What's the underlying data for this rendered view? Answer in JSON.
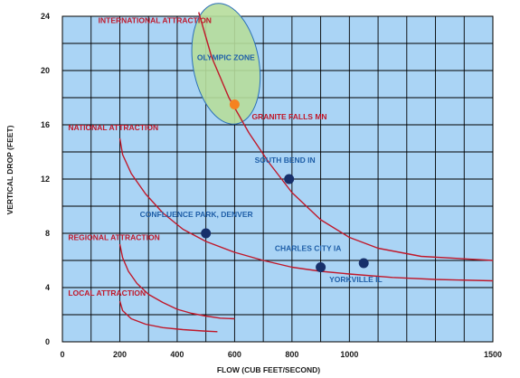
{
  "chart_data": {
    "type": "scatter",
    "title": "",
    "xlabel": "FLOW (CUB FEET/SECOND)",
    "ylabel": "VERTICAL DROP (FEET)",
    "xlim": [
      0,
      1500
    ],
    "ylim": [
      0,
      24
    ],
    "x_ticks": [
      0,
      200,
      400,
      600,
      800,
      1000,
      1500
    ],
    "y_ticks": [
      0,
      4,
      8,
      12,
      16,
      20,
      24
    ],
    "grid": true,
    "colors": {
      "plot_background": "#aad4f5",
      "grid": "#000000",
      "curves": "#c0182a",
      "points": "#17306b",
      "highlight_point": "#f58220",
      "zone_fill": "#b6dd9b",
      "zone_edge": "#2a6fb8",
      "region_labels": "#c0182a",
      "point_labels": "#1f5fa8"
    },
    "regions": [
      {
        "label": "INTERNATIONAL ATTRACTION",
        "x": 125,
        "y": 23.5
      },
      {
        "label": "NATIONAL ATTRACTION",
        "x": 20,
        "y": 15.6
      },
      {
        "label": "REGIONAL ATTRACTION",
        "x": 20,
        "y": 7.5
      },
      {
        "label": "LOCAL ATTRACTION",
        "x": 20,
        "y": 3.4
      }
    ],
    "zone": {
      "label": "OLYMPIC ZONE",
      "cx": 570,
      "cy": 20.5,
      "rx": 115,
      "ry": 4.5
    },
    "curves": [
      {
        "points": [
          [
            475,
            24.3
          ],
          [
            520,
            21
          ],
          [
            580,
            18
          ],
          [
            650,
            15.4
          ],
          [
            720,
            13.2
          ],
          [
            800,
            11
          ],
          [
            900,
            9
          ],
          [
            1000,
            7.7
          ],
          [
            1100,
            6.9
          ],
          [
            1250,
            6.3
          ],
          [
            1500,
            6
          ]
        ]
      },
      {
        "points": [
          [
            200,
            15
          ],
          [
            210,
            13.8
          ],
          [
            240,
            12.4
          ],
          [
            290,
            10.9
          ],
          [
            350,
            9.5
          ],
          [
            420,
            8.3
          ],
          [
            500,
            7.4
          ],
          [
            600,
            6.6
          ],
          [
            700,
            6
          ],
          [
            800,
            5.5
          ],
          [
            900,
            5.2
          ],
          [
            1000,
            5
          ],
          [
            1150,
            4.75
          ],
          [
            1300,
            4.6
          ],
          [
            1500,
            4.5
          ]
        ]
      },
      {
        "points": [
          [
            200,
            7.2
          ],
          [
            210,
            6.2
          ],
          [
            230,
            5.2
          ],
          [
            260,
            4.3
          ],
          [
            300,
            3.5
          ],
          [
            350,
            2.9
          ],
          [
            400,
            2.4
          ],
          [
            450,
            2.1
          ],
          [
            500,
            1.9
          ],
          [
            550,
            1.75
          ],
          [
            600,
            1.7
          ]
        ]
      },
      {
        "points": [
          [
            200,
            3
          ],
          [
            210,
            2.3
          ],
          [
            240,
            1.7
          ],
          [
            290,
            1.3
          ],
          [
            350,
            1.05
          ],
          [
            420,
            0.9
          ],
          [
            490,
            0.8
          ],
          [
            540,
            0.75
          ]
        ]
      }
    ],
    "points": [
      {
        "label": "GRANITE FALLS MN",
        "x": 600,
        "y": 17.5,
        "highlight": true,
        "label_anchor": "start",
        "label_dx": 60,
        "label_dy": -1.1
      },
      {
        "label": "SOUTH BEND IN",
        "x": 790,
        "y": 12,
        "highlight": false,
        "label_anchor": "start",
        "label_dx": -120,
        "label_dy": 1.2
      },
      {
        "label": "CONFLUENCE PARK, DENVER",
        "x": 500,
        "y": 8,
        "highlight": false,
        "label_anchor": "start",
        "label_dx": -230,
        "label_dy": 1.2
      },
      {
        "label": "CHARLES CITY IA",
        "x": 900,
        "y": 5.5,
        "highlight": false,
        "label_anchor": "start",
        "label_dx": -160,
        "label_dy": 1.2
      },
      {
        "label": "YORKVILLE IL",
        "x": 1050,
        "y": 5.8,
        "highlight": false,
        "label_anchor": "start",
        "label_dx": -120,
        "label_dy": -1.4
      }
    ]
  }
}
